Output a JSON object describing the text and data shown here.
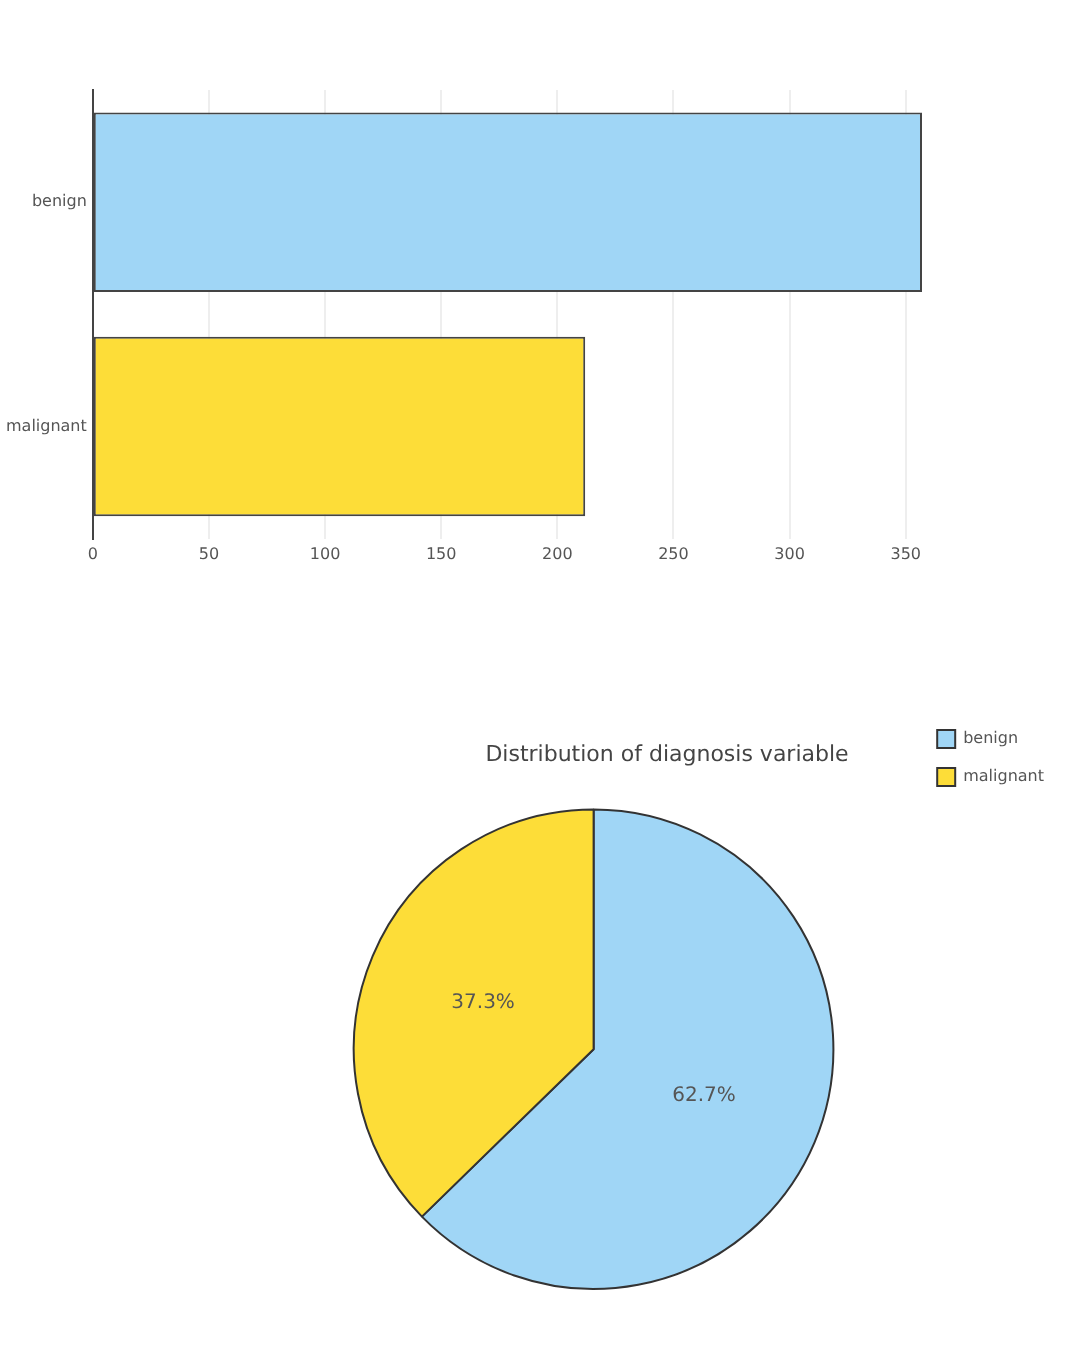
{
  "chart_data": [
    {
      "type": "bar",
      "orientation": "horizontal",
      "categories": [
        "benign",
        "malignant"
      ],
      "values": [
        357,
        212
      ],
      "colors": [
        "#a0d6f6",
        "#fddd38"
      ],
      "xlim": [
        0,
        357
      ],
      "xticks": [
        0,
        50,
        100,
        150,
        200,
        250,
        300,
        350
      ],
      "grid": "x",
      "legend": false
    },
    {
      "type": "pie",
      "title": "Distribution of diagnosis variable",
      "categories": [
        "benign",
        "malignant"
      ],
      "values": [
        62.7,
        37.3
      ],
      "colors": [
        "#a0d6f6",
        "#fddd38"
      ],
      "value_labels": [
        "62.7%",
        "37.3%"
      ],
      "legend": "top right"
    }
  ]
}
